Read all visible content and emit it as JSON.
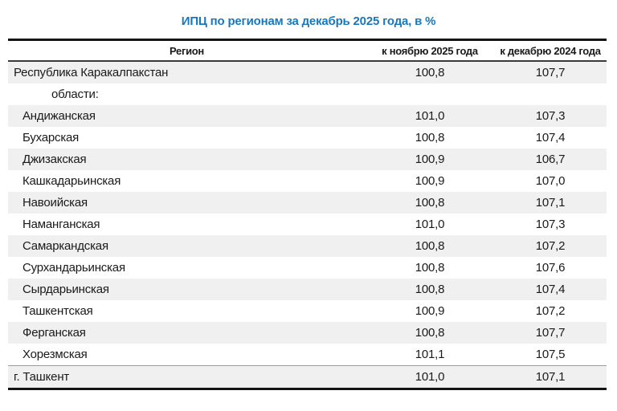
{
  "title": {
    "text": "ИПЦ по регионам за декабрь 2025 года, в %",
    "color": "#1878be"
  },
  "table": {
    "columns": [
      "Регион",
      "к ноябрю 2025 года",
      "к декабрю 2024 года"
    ],
    "rows": [
      {
        "region": "Республика Каракалпакстан",
        "to_nov_2025": "100,8",
        "to_dec_2024": "107,7"
      },
      {
        "region": "области:",
        "to_nov_2025": "",
        "to_dec_2024": ""
      },
      {
        "region": "Андижанская",
        "to_nov_2025": "101,0",
        "to_dec_2024": "107,3"
      },
      {
        "region": "Бухарская",
        "to_nov_2025": "100,8",
        "to_dec_2024": "107,4"
      },
      {
        "region": "Джизакская",
        "to_nov_2025": "100,9",
        "to_dec_2024": "106,7"
      },
      {
        "region": "Кашкадарьинская",
        "to_nov_2025": "100,9",
        "to_dec_2024": "107,0"
      },
      {
        "region": "Навоийская",
        "to_nov_2025": "100,8",
        "to_dec_2024": "107,1"
      },
      {
        "region": "Наманганская",
        "to_nov_2025": "101,0",
        "to_dec_2024": "107,3"
      },
      {
        "region": "Самаркандская",
        "to_nov_2025": "100,8",
        "to_dec_2024": "107,2"
      },
      {
        "region": "Сурхандарьинская",
        "to_nov_2025": "100,8",
        "to_dec_2024": "107,6"
      },
      {
        "region": "Сырдарьинская",
        "to_nov_2025": "100,8",
        "to_dec_2024": "107,4"
      },
      {
        "region": "Ташкентская",
        "to_nov_2025": "100,9",
        "to_dec_2024": "107,2"
      },
      {
        "region": "Ферганская",
        "to_nov_2025": "100,8",
        "to_dec_2024": "107,7"
      },
      {
        "region": "Хорезмская",
        "to_nov_2025": "101,1",
        "to_dec_2024": "107,5"
      },
      {
        "region": "г. Ташкент",
        "to_nov_2025": "101,0",
        "to_dec_2024": "107,1"
      }
    ]
  },
  "chart_data": {
    "type": "table",
    "title": "ИПЦ по регионам за декабрь 2025 года, в %",
    "columns": [
      "Регион",
      "к ноябрю 2025 года",
      "к декабрю 2024 года"
    ],
    "rows": [
      [
        "Республика Каракалпакстан",
        100.8,
        107.7
      ],
      [
        "области:",
        null,
        null
      ],
      [
        "Андижанская",
        101.0,
        107.3
      ],
      [
        "Бухарская",
        100.8,
        107.4
      ],
      [
        "Джизакская",
        100.9,
        106.7
      ],
      [
        "Кашкадарьинская",
        100.9,
        107.0
      ],
      [
        "Навоийская",
        100.8,
        107.1
      ],
      [
        "Наманганская",
        101.0,
        107.3
      ],
      [
        "Самаркандская",
        100.8,
        107.2
      ],
      [
        "Сурхандарьинская",
        100.8,
        107.6
      ],
      [
        "Сырдарьинская",
        100.8,
        107.4
      ],
      [
        "Ташкентская",
        100.9,
        107.2
      ],
      [
        "Ферганская",
        100.8,
        107.7
      ],
      [
        "Хорезмская",
        101.1,
        107.5
      ],
      [
        "г. Ташкент",
        101.0,
        107.1
      ]
    ],
    "units": "percent",
    "notes_layout": "zebra rows, thick top/bottom rules, values centered"
  }
}
